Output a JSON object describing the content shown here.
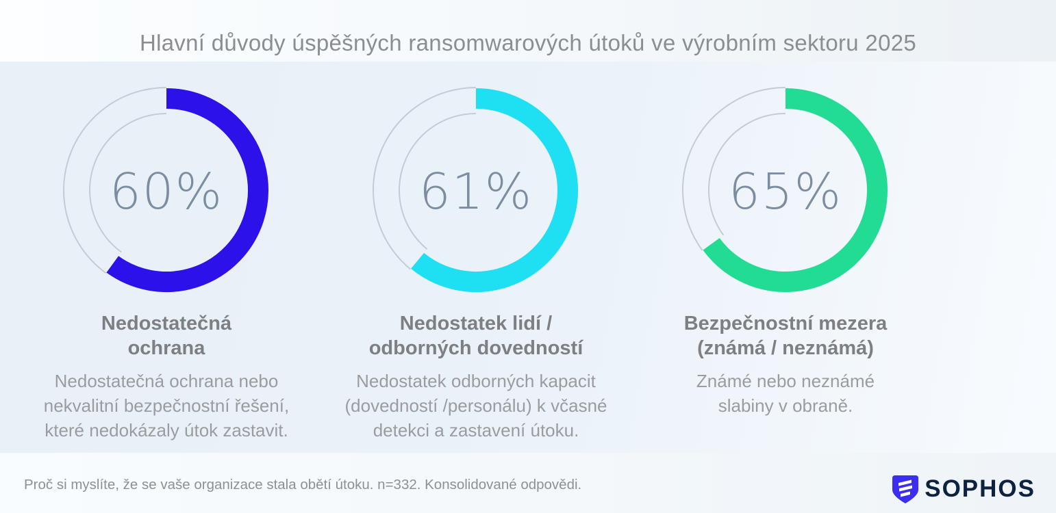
{
  "page": {
    "title": "Hlavní důvody úspěšných ransomwarových útoků ve výrobním sektoru 2025",
    "footnote": "Proč si myslíte, že se vaše organizace stala obětí útoku. n=332. Konsolidované odpovědi.",
    "brand": {
      "name": "SOPHOS",
      "icon": "sophos-shield-icon"
    }
  },
  "colors": {
    "accent_blue": "#2b12e9",
    "accent_cyan": "#1fdff2",
    "accent_green": "#21dc92",
    "track_gray": "#c3ccd6",
    "value_text": "#7b8ea1",
    "heading_text": "#7d7f82",
    "body_text": "#9a9c9f",
    "title_text": "#8b8e91",
    "brand_navy": "#0d2240",
    "brand_blue": "#3b2ef0",
    "background_light": "#f5f9fc",
    "background_band": "#e8f0f8"
  },
  "chart_data": {
    "type": "pie",
    "subtype": "donut",
    "title": "Hlavní důvody úspěšných ransomwarových útoků ve výrobním sektoru 2025",
    "unit": "%",
    "legend_position": "none",
    "source_note": "Proč si myslíte, že se vaše organizace stala obětí útoku. n=332. Konsolidované odpovědi.",
    "n": 332,
    "series": [
      {
        "value": 60,
        "display": "60%",
        "color": "#2b12e9",
        "label": "Nedostatečná ochrana",
        "label_lines": [
          "Nedostatečná",
          "ochrana"
        ],
        "description": "Nedostatečná ochrana nebo nekvalitní bezpečnostní řešení, které nedokázaly útok zastavit.",
        "description_lines": [
          "Nedostatečná ochrana nebo",
          "nekvalitní bezpečnostní řešení,",
          "které nedokázaly útok zastavit."
        ]
      },
      {
        "value": 61,
        "display": "61%",
        "color": "#1fdff2",
        "label": "Nedostatek lidí / odborných dovedností",
        "label_lines": [
          "Nedostatek lidí /",
          "odborných dovedností"
        ],
        "description": "Nedostatek odborných kapacit (dovedností /personálu) k včasné detekci a zastavení útoku.",
        "description_lines": [
          "Nedostatek odborných kapacit",
          "(dovedností /personálu) k včasné",
          "detekci a zastavení útoku."
        ]
      },
      {
        "value": 65,
        "display": "65%",
        "color": "#21dc92",
        "label": "Bezpečnostní mezera (známá / neznámá)",
        "label_lines": [
          "Bezpečnostní mezera",
          "(známá / neznámá)"
        ],
        "description": "Známé nebo neznámé slabiny v obraně.",
        "description_lines": [
          "Známé nebo neznámé",
          "slabiny v obraně."
        ]
      }
    ]
  }
}
